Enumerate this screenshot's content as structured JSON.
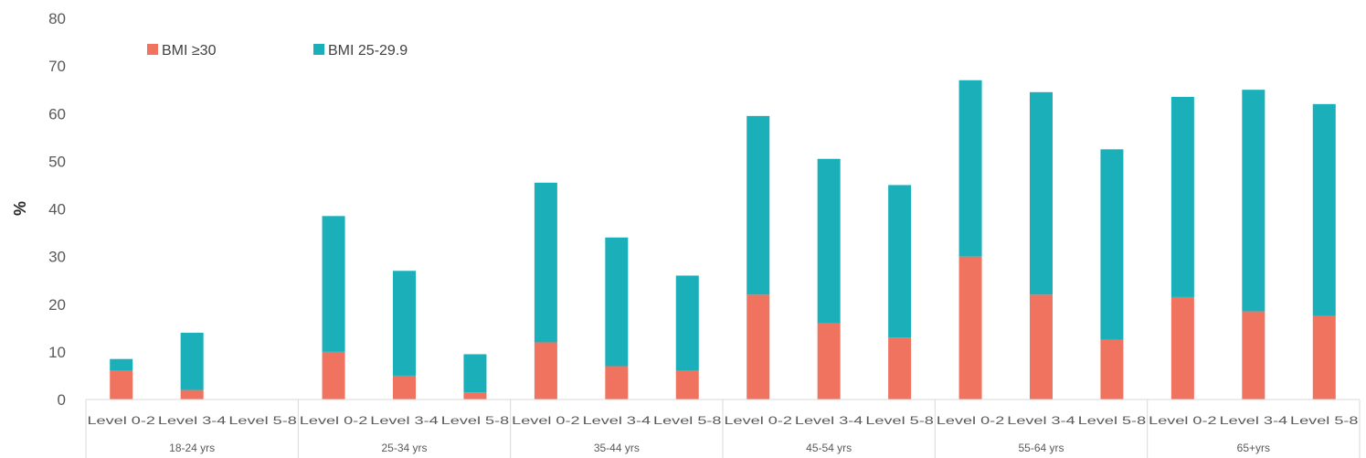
{
  "chart_data": {
    "type": "bar",
    "stacked": true,
    "title": "",
    "xlabel": "",
    "ylabel": "%",
    "ylim": [
      0,
      80
    ],
    "yticks": [
      0,
      10,
      20,
      30,
      40,
      50,
      60,
      70,
      80
    ],
    "grid": false,
    "legend_position": "top-left",
    "groups": [
      "18-24 yrs",
      "25-34 yrs",
      "35-44 yrs",
      "45-54 yrs",
      "55-64 yrs",
      "65+yrs"
    ],
    "categories": [
      "Level 0-2",
      "Level 3-4",
      "Level 5-8"
    ],
    "series": [
      {
        "name": "BMI ≥30",
        "color": "#f07360",
        "values": [
          [
            6,
            2,
            null
          ],
          [
            10,
            5,
            1.5
          ],
          [
            12,
            7,
            6
          ],
          [
            22,
            16,
            13
          ],
          [
            30,
            22,
            12.5
          ],
          [
            21.5,
            18.5,
            17.5
          ]
        ]
      },
      {
        "name": "BMI 25-29.9",
        "color": "#1bafba",
        "values": [
          [
            2.5,
            12,
            null
          ],
          [
            28.5,
            22,
            8
          ],
          [
            33.5,
            27,
            20
          ],
          [
            37.5,
            34.5,
            32
          ],
          [
            37,
            42.5,
            40
          ],
          [
            42,
            46.5,
            44.5
          ]
        ]
      }
    ]
  }
}
